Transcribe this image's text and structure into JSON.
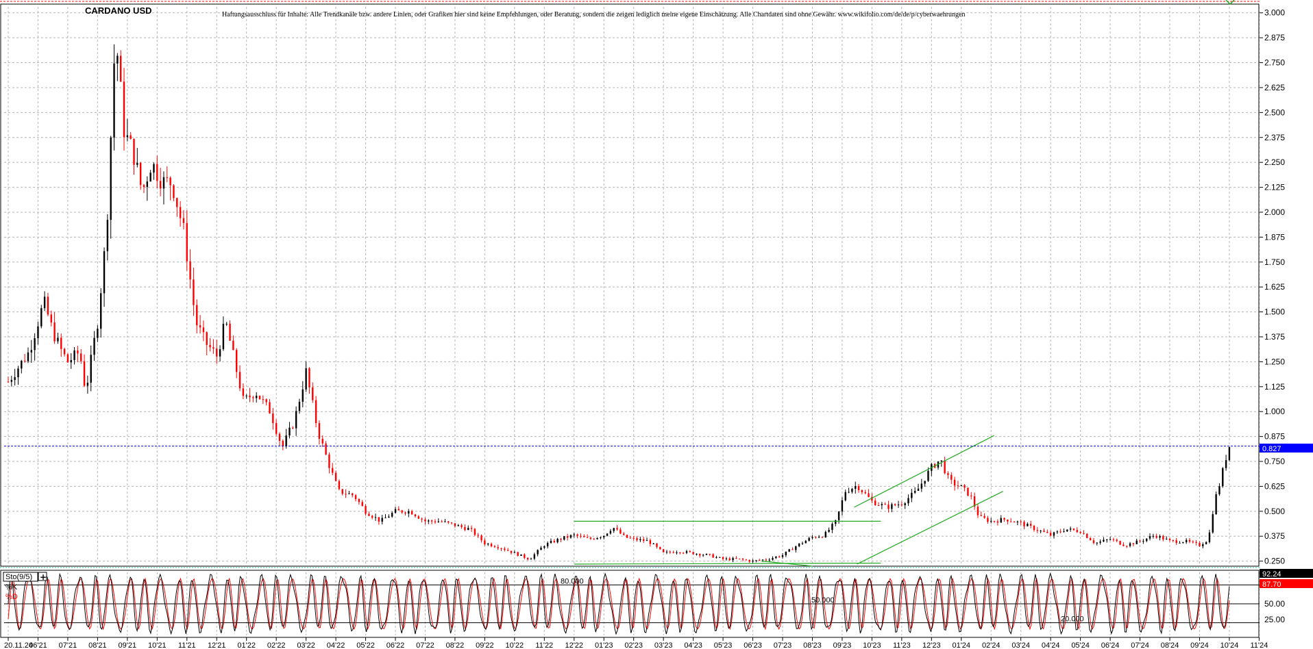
{
  "header": {
    "symbol_title": "CARDANO USD",
    "disclaimer": "Haftungsausschluss für Inhalte: Alle Trendkanäle bzw. andere Linien, oder Grafiken hier sind keine Empfehlungen, oder Beratung, sondern die zeigen lediglich meine eigene Einschätzung. Alle Chartdaten sind ohne Gewähr.  www.wikifolio.com/de/de/p/cyberwaehrungen"
  },
  "colors": {
    "up_candle": "#000000",
    "down_candle": "#ff0000",
    "grid": "#b4b4b4",
    "trendline": "#22aa22",
    "price_line": "#0000dd",
    "price_badge": "#0000ff",
    "stoch_k": "#000000",
    "stoch_d": "#ff0000",
    "top_border": "#ff0000"
  },
  "chart_data": [
    {
      "type": "candlestick",
      "title": "CARDANO USD",
      "x_ticks": [
        "20.11.24",
        "06'21",
        "07'21",
        "08'21",
        "09'21",
        "10'21",
        "11'21",
        "12'21",
        "01'22",
        "02'22",
        "03'22",
        "04'22",
        "05'22",
        "06'22",
        "07'22",
        "08'22",
        "09'22",
        "10'22",
        "11'22",
        "12'22",
        "01'23",
        "02'23",
        "03'23",
        "04'23",
        "05'23",
        "06'23",
        "07'23",
        "08'23",
        "09'23",
        "10'23",
        "11'23",
        "12'23",
        "01'24",
        "02'24",
        "03'24",
        "04'24",
        "05'24",
        "06'24",
        "07'24",
        "08'24",
        "09'24",
        "10'24",
        "11'24"
      ],
      "y_ticks": [
        "3.000",
        "2.875",
        "2.750",
        "2.625",
        "2.500",
        "2.375",
        "2.250",
        "2.125",
        "2.000",
        "1.875",
        "1.750",
        "1.625",
        "1.500",
        "1.375",
        "1.250",
        "1.125",
        "1.000",
        "0.875",
        "0.750",
        "0.625",
        "0.500",
        "0.375",
        "0.250"
      ],
      "ylim": [
        0.235,
        3.03
      ],
      "grid": true,
      "last_price": 0.827,
      "last_price_label": "0.827",
      "close_points": [
        {
          "x": 0.0,
          "y": 1.15
        },
        {
          "x": 0.7,
          "y": 1.3
        },
        {
          "x": 1.2,
          "y": 1.55
        },
        {
          "x": 1.5,
          "y": 1.4
        },
        {
          "x": 1.8,
          "y": 1.3
        },
        {
          "x": 2.0,
          "y": 1.25
        },
        {
          "x": 2.4,
          "y": 1.3
        },
        {
          "x": 2.6,
          "y": 1.1
        },
        {
          "x": 3.0,
          "y": 1.45
        },
        {
          "x": 3.3,
          "y": 1.9
        },
        {
          "x": 3.6,
          "y": 2.9
        },
        {
          "x": 3.9,
          "y": 2.4
        },
        {
          "x": 4.2,
          "y": 2.3
        },
        {
          "x": 4.5,
          "y": 2.1
        },
        {
          "x": 4.8,
          "y": 2.25
        },
        {
          "x": 5.2,
          "y": 2.15
        },
        {
          "x": 5.5,
          "y": 2.15
        },
        {
          "x": 5.9,
          "y": 1.9
        },
        {
          "x": 6.3,
          "y": 1.45
        },
        {
          "x": 6.6,
          "y": 1.35
        },
        {
          "x": 7.0,
          "y": 1.28
        },
        {
          "x": 7.3,
          "y": 1.45
        },
        {
          "x": 7.6,
          "y": 1.25
        },
        {
          "x": 7.9,
          "y": 1.05
        },
        {
          "x": 8.3,
          "y": 1.1
        },
        {
          "x": 8.8,
          "y": 1.0
        },
        {
          "x": 9.2,
          "y": 0.82
        },
        {
          "x": 9.6,
          "y": 0.95
        },
        {
          "x": 10.0,
          "y": 1.2
        },
        {
          "x": 10.4,
          "y": 0.9
        },
        {
          "x": 10.8,
          "y": 0.72
        },
        {
          "x": 11.1,
          "y": 0.6
        },
        {
          "x": 11.6,
          "y": 0.58
        },
        {
          "x": 12.0,
          "y": 0.5
        },
        {
          "x": 12.5,
          "y": 0.45
        },
        {
          "x": 13.0,
          "y": 0.5
        },
        {
          "x": 13.5,
          "y": 0.5
        },
        {
          "x": 14.0,
          "y": 0.45
        },
        {
          "x": 14.5,
          "y": 0.45
        },
        {
          "x": 15.0,
          "y": 0.43
        },
        {
          "x": 15.5,
          "y": 0.41
        },
        {
          "x": 16.0,
          "y": 0.34
        },
        {
          "x": 16.5,
          "y": 0.32
        },
        {
          "x": 17.0,
          "y": 0.29
        },
        {
          "x": 17.5,
          "y": 0.26
        },
        {
          "x": 18.0,
          "y": 0.33
        },
        {
          "x": 18.5,
          "y": 0.36
        },
        {
          "x": 19.0,
          "y": 0.38
        },
        {
          "x": 19.5,
          "y": 0.36
        },
        {
          "x": 20.0,
          "y": 0.38
        },
        {
          "x": 20.3,
          "y": 0.42
        },
        {
          "x": 20.7,
          "y": 0.37
        },
        {
          "x": 21.0,
          "y": 0.36
        },
        {
          "x": 21.5,
          "y": 0.35
        },
        {
          "x": 22.0,
          "y": 0.29
        },
        {
          "x": 22.5,
          "y": 0.3
        },
        {
          "x": 23.0,
          "y": 0.29
        },
        {
          "x": 23.5,
          "y": 0.28
        },
        {
          "x": 24.0,
          "y": 0.26
        },
        {
          "x": 24.5,
          "y": 0.26
        },
        {
          "x": 25.0,
          "y": 0.25
        },
        {
          "x": 25.5,
          "y": 0.26
        },
        {
          "x": 26.0,
          "y": 0.28
        },
        {
          "x": 26.5,
          "y": 0.33
        },
        {
          "x": 27.0,
          "y": 0.37
        },
        {
          "x": 27.4,
          "y": 0.38
        },
        {
          "x": 27.8,
          "y": 0.45
        },
        {
          "x": 28.1,
          "y": 0.6
        },
        {
          "x": 28.5,
          "y": 0.63
        },
        {
          "x": 29.0,
          "y": 0.55
        },
        {
          "x": 29.5,
          "y": 0.52
        },
        {
          "x": 30.0,
          "y": 0.54
        },
        {
          "x": 30.5,
          "y": 0.6
        },
        {
          "x": 31.0,
          "y": 0.72
        },
        {
          "x": 31.3,
          "y": 0.76
        },
        {
          "x": 31.6,
          "y": 0.65
        },
        {
          "x": 32.0,
          "y": 0.62
        },
        {
          "x": 32.3,
          "y": 0.58
        },
        {
          "x": 32.6,
          "y": 0.47
        },
        {
          "x": 33.0,
          "y": 0.45
        },
        {
          "x": 33.5,
          "y": 0.46
        },
        {
          "x": 34.0,
          "y": 0.44
        },
        {
          "x": 34.5,
          "y": 0.41
        },
        {
          "x": 35.0,
          "y": 0.38
        },
        {
          "x": 35.5,
          "y": 0.41
        },
        {
          "x": 36.0,
          "y": 0.4
        },
        {
          "x": 36.5,
          "y": 0.34
        },
        {
          "x": 37.0,
          "y": 0.36
        },
        {
          "x": 37.5,
          "y": 0.33
        },
        {
          "x": 38.0,
          "y": 0.35
        },
        {
          "x": 38.5,
          "y": 0.38
        },
        {
          "x": 39.0,
          "y": 0.35
        },
        {
          "x": 39.5,
          "y": 0.35
        },
        {
          "x": 40.0,
          "y": 0.33
        },
        {
          "x": 40.3,
          "y": 0.36
        },
        {
          "x": 40.5,
          "y": 0.55
        },
        {
          "x": 40.7,
          "y": 0.65
        },
        {
          "x": 40.85,
          "y": 0.75
        },
        {
          "x": 41.0,
          "y": 0.827
        }
      ],
      "candle_samples_per_month": 9,
      "trendlines": [
        {
          "x1": 19.0,
          "y1": 0.45,
          "x2": 29.3,
          "y2": 0.45
        },
        {
          "x1": 19.0,
          "y1": 0.235,
          "x2": 29.3,
          "y2": 0.24
        },
        {
          "x1": 25.3,
          "y1": 0.25,
          "x2": 27.0,
          "y2": 0.225
        },
        {
          "x1": 28.4,
          "y1": 0.52,
          "x2": 33.1,
          "y2": 0.88
        },
        {
          "x1": 28.5,
          "y1": 0.235,
          "x2": 33.4,
          "y2": 0.6
        }
      ]
    },
    {
      "type": "line",
      "title": "Sto(9/5)",
      "series": [
        {
          "name": "%K",
          "last_value": 92.24,
          "last_value_label": "92.24"
        },
        {
          "name": "%D",
          "last_value": 87.7,
          "last_value_label": "87.70"
        }
      ],
      "ylim": [
        0,
        100
      ],
      "levels": [
        {
          "value": 80,
          "label": "80.000"
        },
        {
          "value": 50,
          "label": "50.000"
        },
        {
          "value": 20,
          "label": "20.000"
        }
      ],
      "y_ticks": [
        "50.00",
        "25.00"
      ],
      "oscillation_cycles": 74
    }
  ],
  "stoch_panel": {
    "label": "Sto(9/5)",
    "button_label": "+",
    "k_label": "%K",
    "d_label": "%D"
  }
}
